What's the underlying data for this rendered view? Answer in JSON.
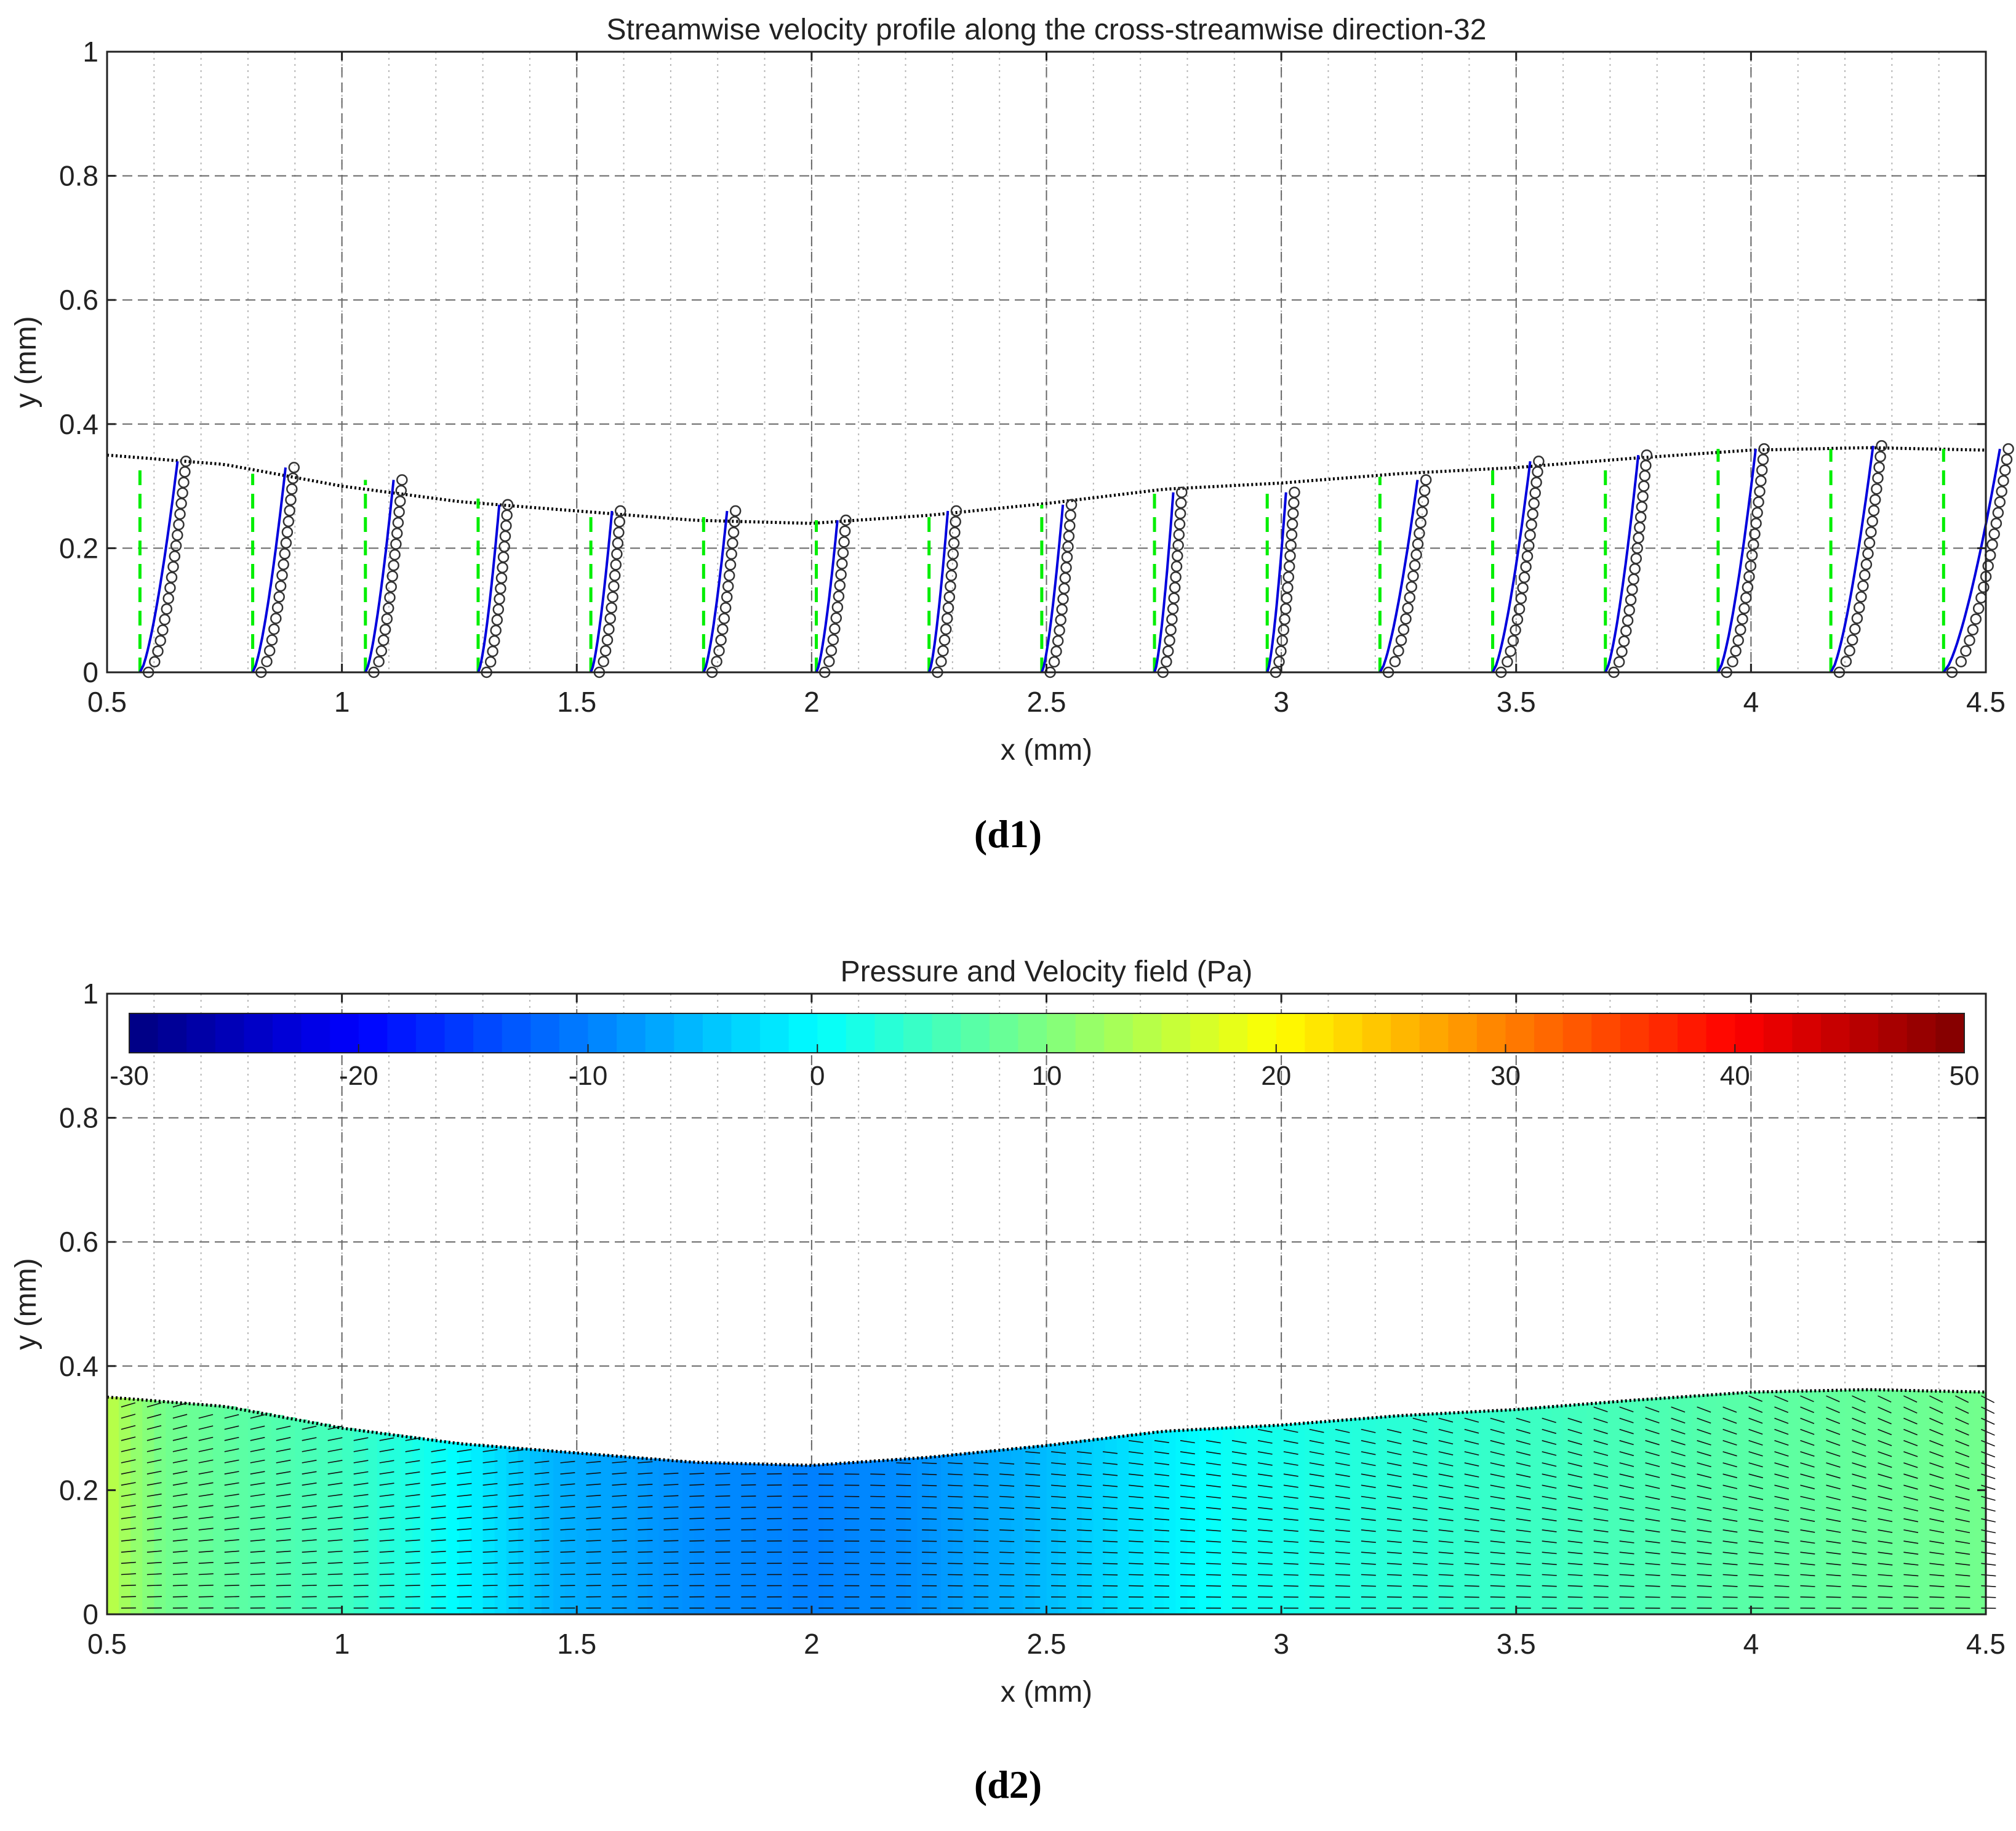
{
  "chart_data": [
    {
      "id": "d1",
      "type": "line",
      "title": "Streamwise velocity profile along the cross-streamwise direction-32",
      "xlabel": "x (mm)",
      "ylabel": "y (mm)",
      "xlim": [
        0.5,
        4.5
      ],
      "ylim": [
        0,
        1
      ],
      "xticks": [
        "0.5",
        "1",
        "1.5",
        "2",
        "2.5",
        "3",
        "3.5",
        "4",
        "4.5"
      ],
      "yticks": [
        "0",
        "0.2",
        "0.4",
        "0.6",
        "0.8",
        "1"
      ],
      "grid": true,
      "wall_profile": {
        "x": [
          0.5,
          0.75,
          1.0,
          1.25,
          1.5,
          1.75,
          2.0,
          2.25,
          2.5,
          2.75,
          3.0,
          3.25,
          3.5,
          3.75,
          4.0,
          4.25,
          4.5
        ],
        "y": [
          0.35,
          0.335,
          0.3,
          0.275,
          0.26,
          0.245,
          0.24,
          0.253,
          0.272,
          0.295,
          0.305,
          0.32,
          0.33,
          0.345,
          0.358,
          0.362,
          0.358
        ]
      },
      "stations": {
        "x": [
          0.57,
          0.81,
          1.05,
          1.29,
          1.53,
          1.77,
          2.01,
          2.25,
          2.49,
          2.73,
          2.97,
          3.21,
          3.45,
          3.69,
          3.93,
          4.17,
          4.41
        ],
        "top_y": [
          0.34,
          0.33,
          0.31,
          0.27,
          0.26,
          0.26,
          0.245,
          0.26,
          0.27,
          0.29,
          0.29,
          0.31,
          0.34,
          0.35,
          0.36,
          0.365,
          0.36
        ],
        "reference_top_y": [
          0.33,
          0.32,
          0.31,
          0.28,
          0.26,
          0.25,
          0.245,
          0.255,
          0.27,
          0.29,
          0.3,
          0.315,
          0.33,
          0.33,
          0.36,
          0.36,
          0.36
        ],
        "deflection_x": [
          0.08,
          0.07,
          0.06,
          0.045,
          0.045,
          0.05,
          0.045,
          0.04,
          0.045,
          0.04,
          0.04,
          0.08,
          0.08,
          0.07,
          0.08,
          0.09,
          0.12
        ]
      },
      "series": [
        {
          "name": "",
          "style": "dashed",
          "color": "#00ee00"
        },
        {
          "name": "",
          "style": "line",
          "color": "#0000dd"
        },
        {
          "name": "",
          "style": "circle markers",
          "color": "#333333"
        },
        {
          "name": "",
          "style": "dotted",
          "color": "#000000"
        }
      ]
    },
    {
      "id": "d2",
      "type": "heatmap",
      "title": "Pressure and Velocity field (Pa)",
      "xlabel": "x (mm)",
      "ylabel": "y (mm)",
      "xlim": [
        0.5,
        4.5
      ],
      "ylim": [
        0,
        1
      ],
      "xticks": [
        "0.5",
        "1",
        "1.5",
        "2",
        "2.5",
        "3",
        "3.5",
        "4",
        "4.5"
      ],
      "yticks": [
        "0",
        "0.2",
        "0.4",
        "0.6",
        "0.8",
        "1"
      ],
      "grid": true,
      "colorbar": {
        "range": [
          -30,
          50
        ],
        "ticks": [
          "-30",
          "-20",
          "-10",
          "0",
          "10",
          "20",
          "30",
          "40",
          "50"
        ],
        "placement": "top inside"
      },
      "pressure_along_x": {
        "x": [
          0.5,
          0.55,
          0.62,
          0.8,
          1.0,
          1.2,
          1.45,
          1.75,
          2.0,
          2.2,
          2.45,
          2.7,
          2.9,
          3.2,
          3.6,
          4.0,
          4.5
        ],
        "value": [
          15,
          12,
          9,
          7,
          5,
          1,
          -6,
          -9,
          -10,
          -9,
          -6,
          -2,
          1,
          3,
          5,
          7,
          9
        ]
      },
      "velocity_arrows": "uniform grid, mostly streamwise, converging near x = 2"
    }
  ],
  "captions": {
    "d1": "(d1)",
    "d2": "(d2)"
  }
}
